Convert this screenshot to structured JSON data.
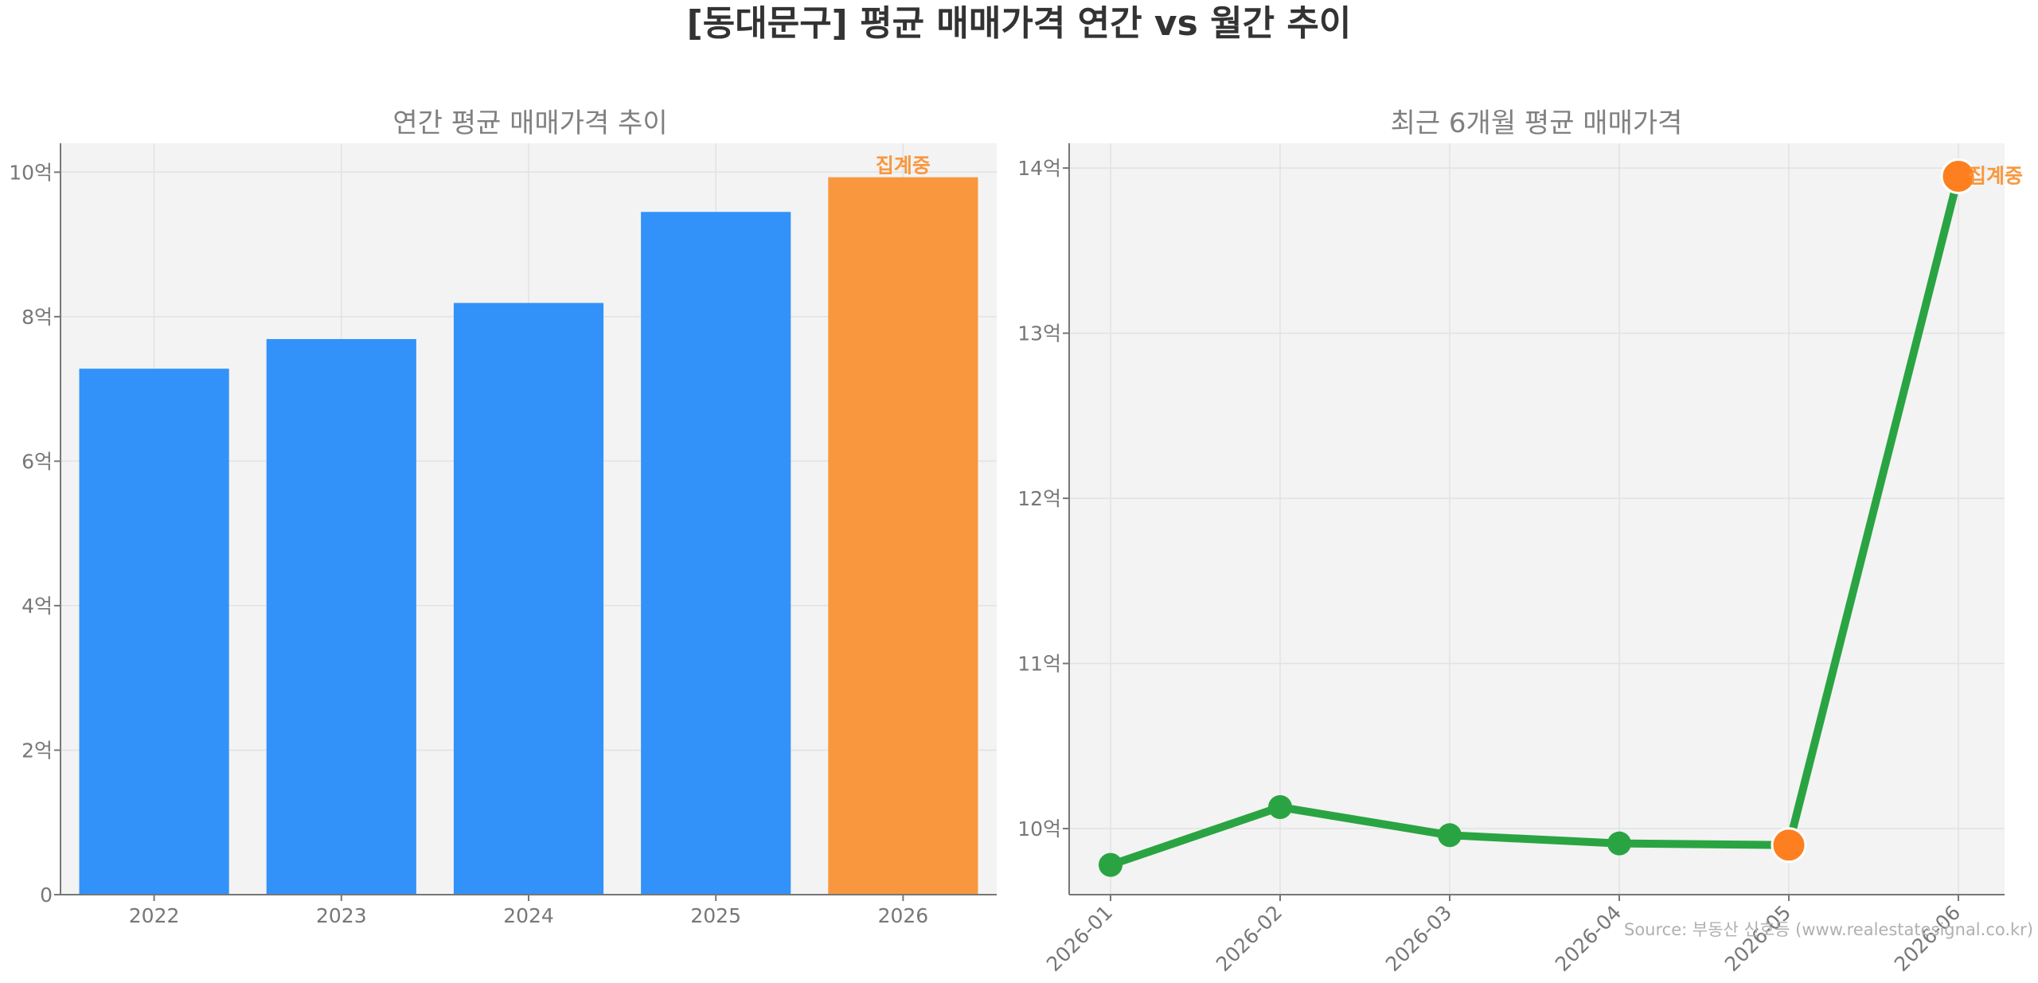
{
  "title": "[동대문구] 평균 매매가격 연간 vs 월간 추이",
  "source": "Source: 부동산 신호등 (www.realestatesignal.co.kr)",
  "colors": {
    "bar": "#3292f9",
    "highlight": "#f9973e",
    "line": "#2aa442",
    "marker_end": "#fd7f1f",
    "plot_bg": "#f3f3f3",
    "axis": "#777777"
  },
  "chart_data": [
    {
      "type": "bar",
      "title": "연간 평균 매매가격 추이",
      "categories": [
        "2022",
        "2023",
        "2024",
        "2025",
        "2026"
      ],
      "values": [
        7.28,
        7.69,
        8.19,
        9.45,
        9.93
      ],
      "unit": "억",
      "ylim": [
        0,
        10.4
      ],
      "yticks": [
        0,
        2,
        4,
        6,
        8,
        10
      ],
      "ytick_labels": [
        "0",
        "2억",
        "4억",
        "6억",
        "8억",
        "10억"
      ],
      "highlight_index": 4,
      "annotation": "집계중",
      "grid": true
    },
    {
      "type": "line",
      "title": "최근 6개월 평균 매매가격",
      "x": [
        "2026-01",
        "2026-02",
        "2026-03",
        "2026-04",
        "2026-05",
        "2026-06"
      ],
      "values": [
        9.78,
        10.13,
        9.96,
        9.91,
        9.9,
        13.95
      ],
      "unit": "억",
      "ylim": [
        9.6,
        14.15
      ],
      "yticks": [
        10,
        11,
        12,
        13,
        14
      ],
      "ytick_labels": [
        "10억",
        "11억",
        "12억",
        "13억",
        "14억"
      ],
      "highlight_indices": [
        4,
        5
      ],
      "annotation": "집계중",
      "grid": true
    }
  ]
}
